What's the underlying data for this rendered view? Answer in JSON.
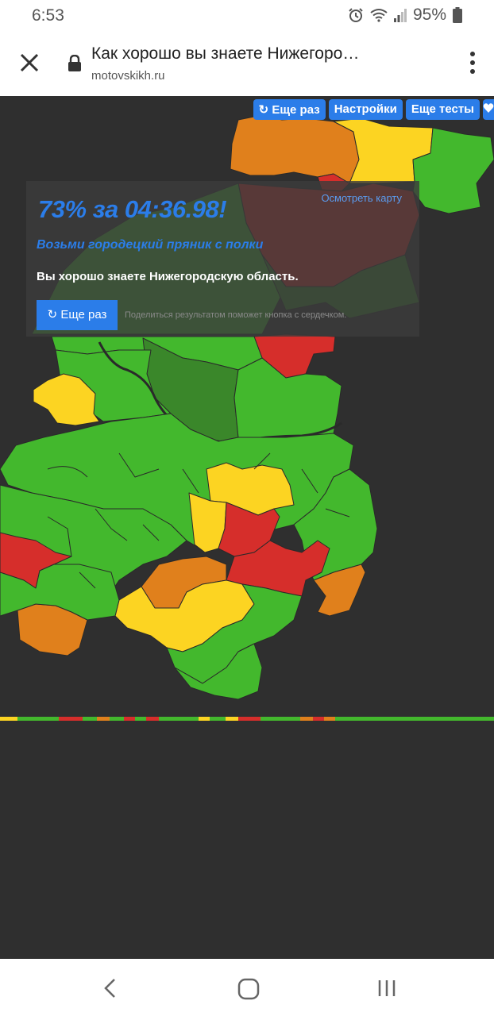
{
  "status": {
    "time": "6:53",
    "battery": "95%"
  },
  "browser": {
    "title": "Как хорошо вы знаете Нижегоро…",
    "domain": "motovskikh.ru"
  },
  "toolbar": {
    "again_label": "↻ Еще раз",
    "settings_label": "Настройки",
    "more_tests_label": "Еще тесты"
  },
  "result": {
    "score": "73% за 04:36.98!",
    "view_map": "Осмотреть карту",
    "question": "Возьми городецкий пряник с полки",
    "verdict": "Вы хорошо знаете Нижегородскую область.",
    "again_label": "↻ Еще раз",
    "share_hint": "Поделиться результатом поможет кнопка с сердечком."
  },
  "colors": {
    "green": "#43b82d",
    "yellow": "#fcd422",
    "orange": "#e0801c",
    "red": "#d62e2b",
    "dark_green": "#3a872a",
    "accent": "#2b7de9"
  }
}
